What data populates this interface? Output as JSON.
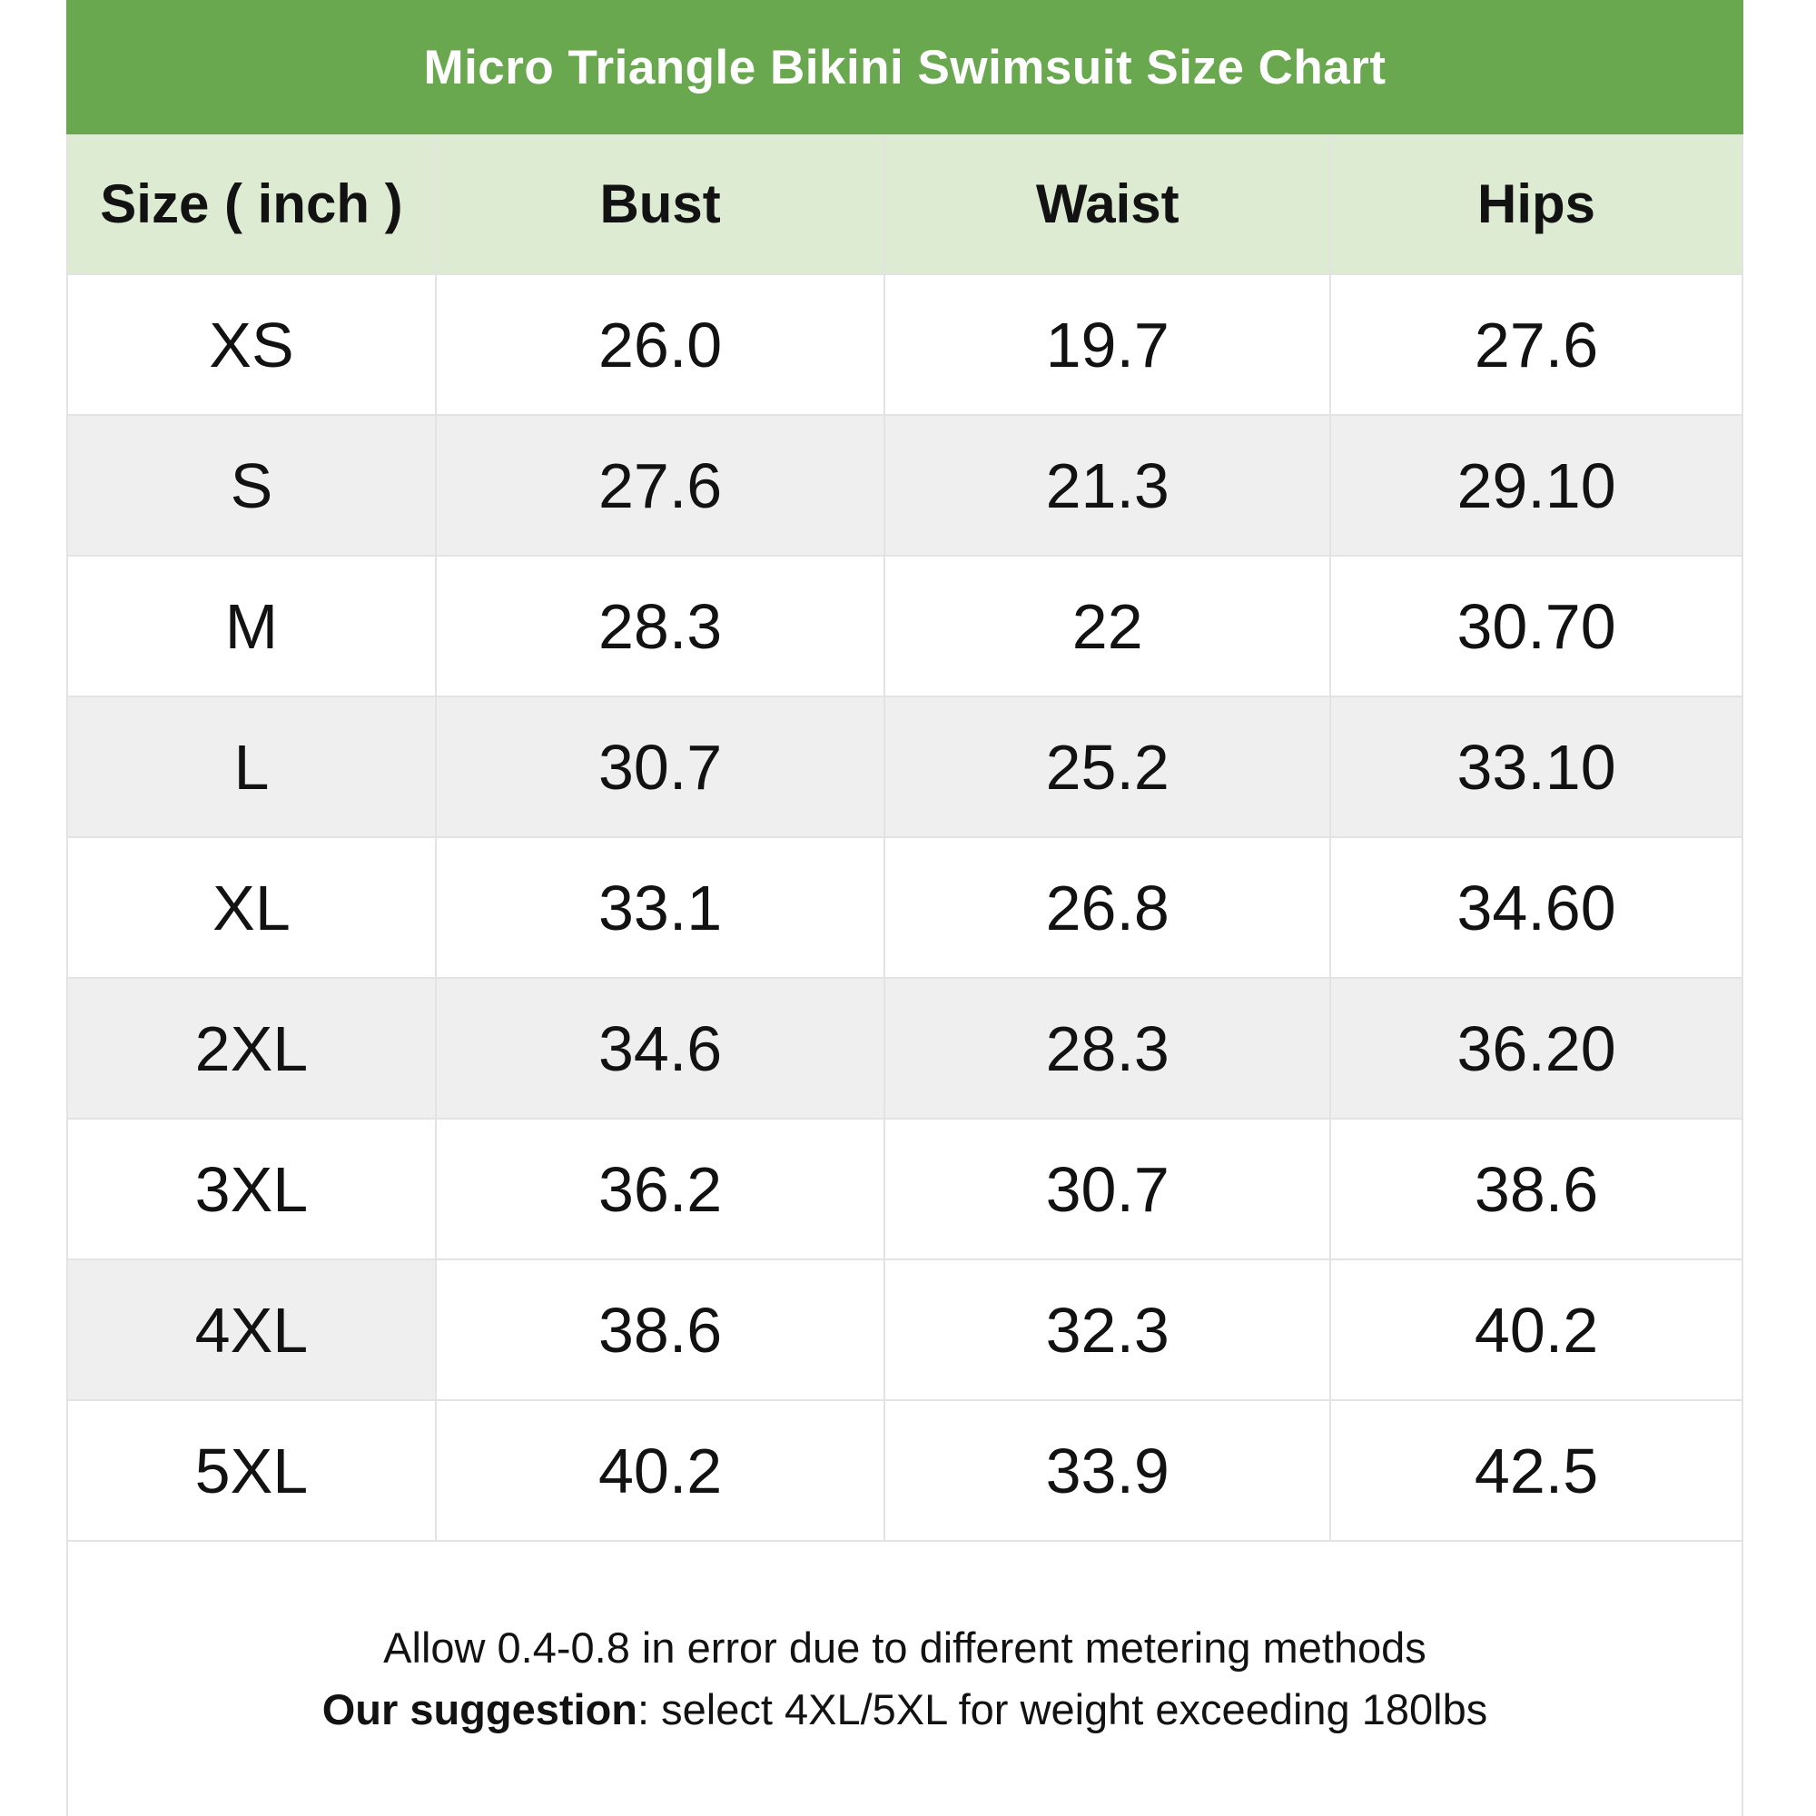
{
  "chart_data": {
    "type": "table",
    "title": "Micro Triangle Bikini Swimsuit Size Chart",
    "columns": [
      "Size ( inch )",
      "Bust",
      "Waist",
      "Hips"
    ],
    "rows": [
      {
        "size": "XS",
        "bust": "26.0",
        "waist": "19.7",
        "hips": "27.6",
        "shade": "none"
      },
      {
        "size": "S",
        "bust": "27.6",
        "waist": "21.3",
        "hips": "29.10",
        "shade": "full"
      },
      {
        "size": "M",
        "bust": "28.3",
        "waist": "22",
        "hips": "30.70",
        "shade": "none"
      },
      {
        "size": "L",
        "bust": "30.7",
        "waist": "25.2",
        "hips": "33.10",
        "shade": "full"
      },
      {
        "size": "XL",
        "bust": "33.1",
        "waist": "26.8",
        "hips": "34.60",
        "shade": "none"
      },
      {
        "size": "2XL",
        "bust": "34.6",
        "waist": "28.3",
        "hips": "36.20",
        "shade": "full"
      },
      {
        "size": "3XL",
        "bust": "36.2",
        "waist": "30.7",
        "hips": "38.6",
        "shade": "none"
      },
      {
        "size": "4XL",
        "bust": "38.6",
        "waist": "32.3",
        "hips": "40.2",
        "shade": "first-cell"
      },
      {
        "size": "5XL",
        "bust": "40.2",
        "waist": "33.9",
        "hips": "42.5",
        "shade": "none"
      }
    ],
    "footnote_line1": "Allow 0.4-0.8 in error due to different metering methods",
    "footnote_line2_label": "Our suggestion",
    "footnote_line2_text": ": select 4XL/5XL for weight exceeding 180lbs",
    "units": "inch"
  },
  "colors": {
    "title-bar-green": "#69a84f",
    "header-row-green": "#dcebd2",
    "zebra-row-gray": "#efefef",
    "border-gray": "#e3e3e3",
    "title-text": "#ffffff",
    "body-text": "#121212"
  }
}
